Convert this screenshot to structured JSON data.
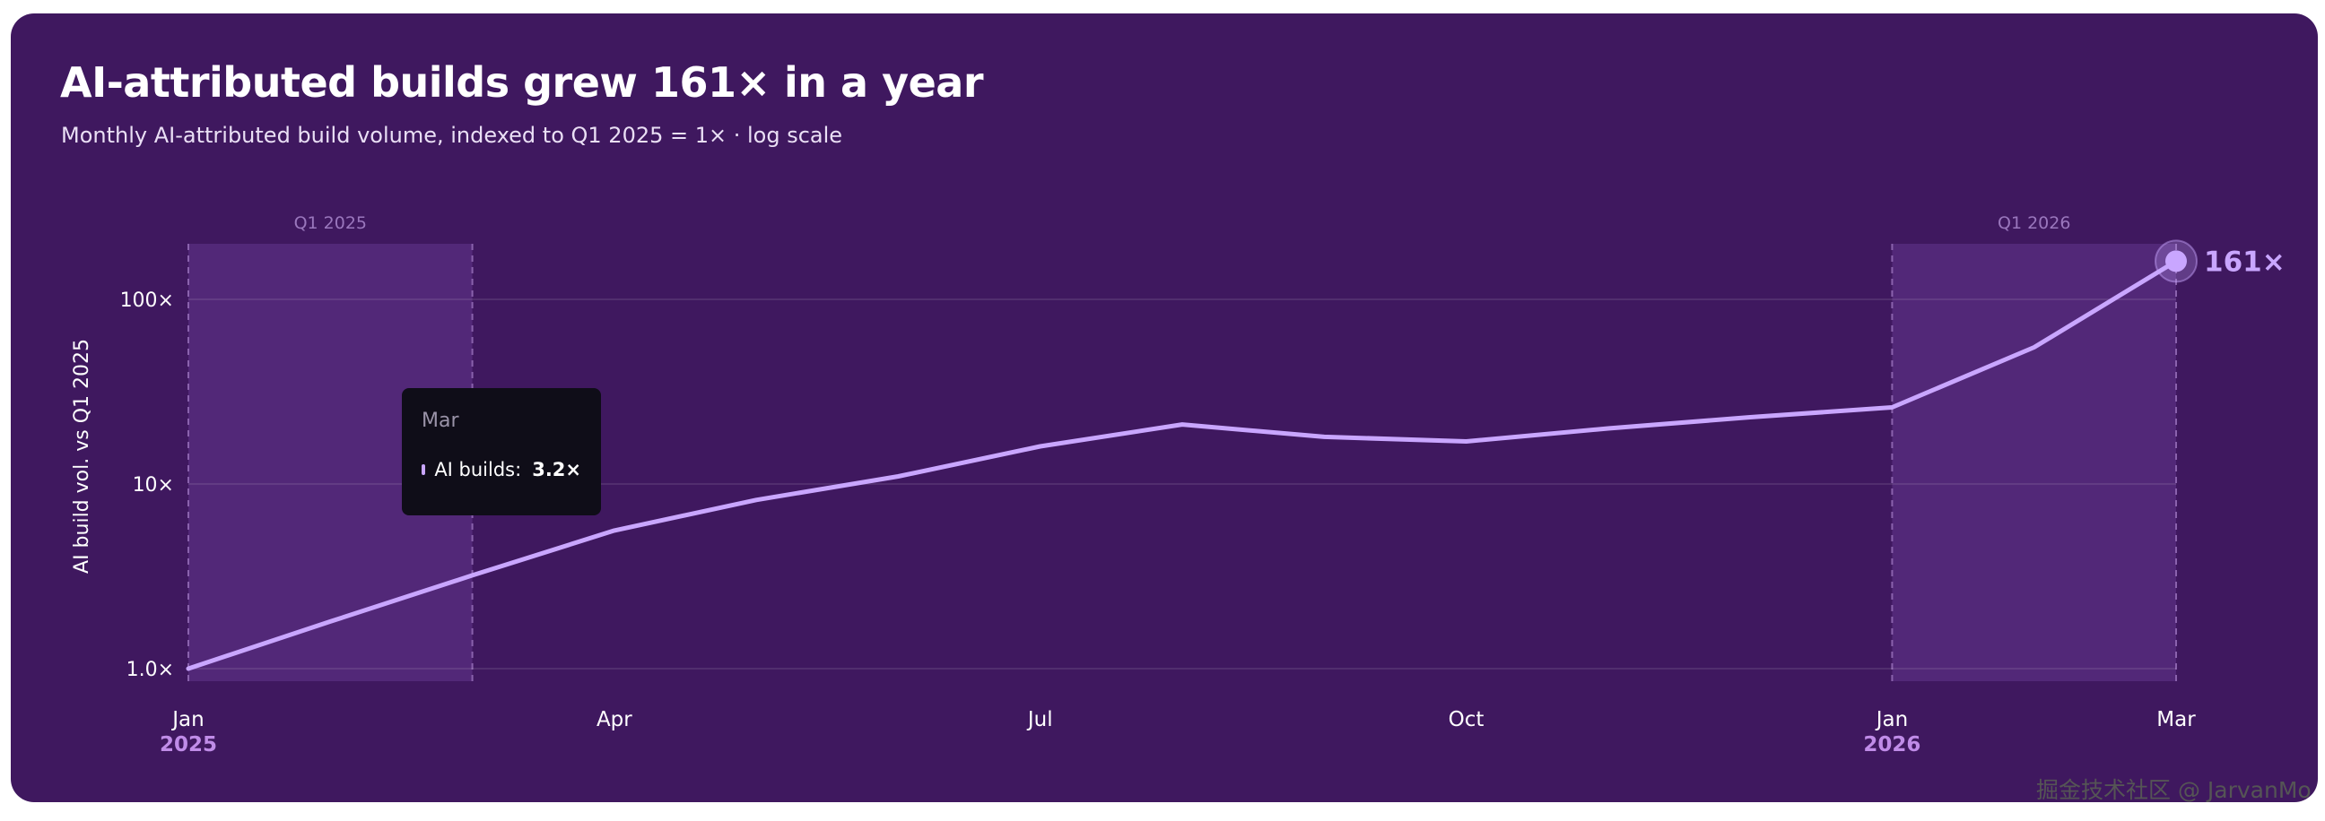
{
  "title": "AI-attributed builds grew 161× in a year",
  "subtitle": "Monthly AI-attributed build volume, indexed to Q1 2025 = 1× · log scale",
  "watermark": "掘金技术社区 @ JarvanMo",
  "colors": {
    "background": "#3f185f",
    "line": "#c9a6ff",
    "band": "#5a2d80",
    "tooltip_bg": "#0f0d18",
    "year_label": "#c08ce8"
  },
  "tooltip": {
    "title": "Mar",
    "series": "AI builds:",
    "value": "3.2×"
  },
  "chart_data": {
    "type": "line",
    "title": "AI-attributed builds grew 161× in a year",
    "subtitle": "Monthly AI-attributed build volume, indexed to Q1 2025 = 1× · log scale",
    "ylabel": "AI build vol. vs Q1 2025",
    "yscale": "log",
    "ylim": [
      0.9,
      170
    ],
    "yticks": [
      {
        "value": 1,
        "label": "1.0×"
      },
      {
        "value": 10,
        "label": "10×"
      },
      {
        "value": 100,
        "label": "100×"
      }
    ],
    "x": [
      "2025-01",
      "2025-02",
      "2025-03",
      "2025-04",
      "2025-05",
      "2025-06",
      "2025-07",
      "2025-08",
      "2025-09",
      "2025-10",
      "2025-11",
      "2025-12",
      "2026-01",
      "2026-02",
      "2026-03"
    ],
    "xticks": [
      {
        "x": "2025-01",
        "label": "Jan",
        "year": "2025"
      },
      {
        "x": "2025-04",
        "label": "Apr"
      },
      {
        "x": "2025-07",
        "label": "Jul"
      },
      {
        "x": "2025-10",
        "label": "Oct"
      },
      {
        "x": "2026-01",
        "label": "Jan",
        "year": "2026"
      },
      {
        "x": "2026-03",
        "label": "Mar"
      }
    ],
    "series": [
      {
        "values": [
          1.0,
          1.8,
          3.2,
          5.6,
          8.2,
          11.0,
          16.0,
          21.0,
          18.0,
          17.0,
          20.0,
          23.0,
          26.0,
          55.0,
          161.0
        ]
      }
    ],
    "highlight_bands": [
      {
        "label": "Q1 2025",
        "from": "2025-01",
        "to": "2025-03"
      },
      {
        "label": "Q1 2026",
        "from": "2026-01",
        "to": "2026-03"
      }
    ],
    "end_label": "161×",
    "grid": true,
    "legend": "none"
  }
}
